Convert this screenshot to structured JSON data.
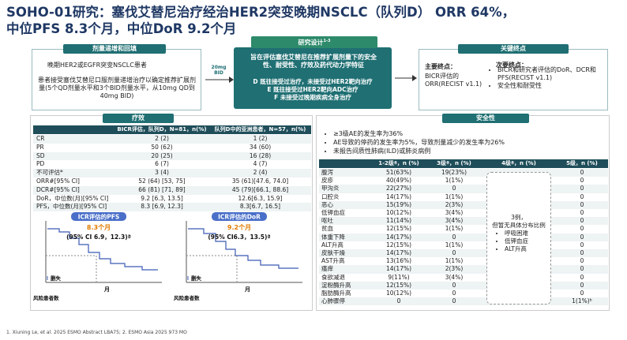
{
  "title": {
    "line1": "SOHO-01研究：塞伐艾替尼治疗经治HER2突变晚期NSCLC（队列D） ORR 64%，",
    "line2": "中位PFS 8.3个月，中位DoR 9.2个月"
  },
  "design": {
    "dose_escalation": {
      "header": "剂量递增和回填",
      "patients": "晚期HER2或EGFR突变NSCLC患者",
      "description": "患者接受塞伐艾替尼口服剂量递增治疗以确定推荐扩展剂量(5个QD剂量水平和3个BID剂量水平，从10mg QD到40mg BID)"
    },
    "arrow_label": "20mg BID",
    "study_design": {
      "header": "研究设计",
      "superscript": "1-3",
      "aim": "旨在评估塞伐艾替尼在推荐扩展剂量下的安全性、耐受性、疗效及药代动力学特征",
      "cohorts": [
        "D 既往接受过治疗，未接受过HER2靶向治疗",
        "E 既往接受过HER2靶向ADC治疗",
        "F 未接受过晚期疾病全身治疗"
      ]
    },
    "endpoints": {
      "header": "关键终点",
      "primary_label": "主要终点：",
      "primary": "BICR评估的ORR(RECIST v1.1)",
      "secondary_label": "次要终点：",
      "secondary": [
        "BICR和研究者评估的DoR、DCR和PFS(RECIST v1.1)",
        "安全性和耐受性"
      ]
    }
  },
  "efficacy": {
    "header": "疗效",
    "table": {
      "columns": [
        "BICR评估，队列D，N=81，n(%)",
        "队列D中的亚洲患者，N=57，n(%)"
      ],
      "rows": [
        [
          "CR",
          "2 (2)",
          "1 (2)"
        ],
        [
          "PR",
          "50 (62)",
          "34 (60)"
        ],
        [
          "SD",
          "20 (25)",
          "16 (28)"
        ],
        [
          "PD",
          "6 (7)",
          "4 (7)"
        ],
        [
          "不可评估*",
          "3 (4)",
          "2 (4)"
        ],
        [
          "ORR#[95% CI]",
          "52 (64) [53, 75]",
          "35 (61)[47.6, 74.0]"
        ],
        [
          "DCR#[95% CI]",
          "66 (81) [71, 89]",
          "45 (79)[66.1, 88.6]"
        ],
        [
          "DoR，中位数(月)[95% CI]",
          "9.2 [6.3, 13.5]",
          "12.6[6.3, 15.9]"
        ],
        [
          "PFS，中位数(月)[95% CI]",
          "8.3 [6.9, 12.3]",
          "8.3[6.7, 16.5]"
        ]
      ]
    },
    "km": [
      {
        "title": "ICR评估的PFS",
        "median": "8.3个月",
        "ci": "(95% CI 6.9，12.3)ª",
        "censor_label": "删失",
        "risk_label": "风险患者数",
        "x_axis_label": "月"
      },
      {
        "title": "ICR评估的DoR",
        "median": "9.2个月",
        "ci": "(95% CI6.3，13.5)ª",
        "censor_label": "删失",
        "risk_label": "风险患者数",
        "x_axis_label": "月"
      }
    ]
  },
  "safety": {
    "header": "安全性",
    "bullets": [
      "≥3级AE的发生率为36%",
      "AE导致的停药的发生率为5%，导致剂量减少的发生率为26%",
      "未报告间质性肺病(ILD)或肺炎病例"
    ],
    "table": {
      "columns": [
        "1-2级ª，n (%)",
        "3级ª，n (%)",
        "4级ª，n (%)",
        "5级，n (%)"
      ],
      "rows": [
        [
          "腹泻",
          "51(63%)",
          "19(23%)",
          "0"
        ],
        [
          "皮疹",
          "40(49%)",
          "1(1%)",
          "0"
        ],
        [
          "甲沟炎",
          "22(27%)",
          "0",
          "0"
        ],
        [
          "口腔炎",
          "14(17%)",
          "1(1%)",
          "0"
        ],
        [
          "恶心",
          "15(19%)",
          "2(3%)",
          "0"
        ],
        [
          "低钾血症",
          "10(12%)",
          "3(4%)",
          "0"
        ],
        [
          "呕吐",
          "11(14%)",
          "3(4%)",
          "0"
        ],
        [
          "贫血",
          "12(15%)",
          "1(1%)",
          "0"
        ],
        [
          "体重下降",
          "14(17%)",
          "0",
          "0"
        ],
        [
          "ALT升高",
          "12(15%)",
          "1(1%)",
          "0"
        ],
        [
          "皮肤干燥",
          "14(17%)",
          "0",
          "0"
        ],
        [
          "AST升高",
          "13(16%)",
          "1(1%)",
          "0"
        ],
        [
          "瘙痒",
          "14(17%)",
          "2(3%)",
          "0"
        ],
        [
          "食欲减退",
          "9(11%)",
          "3(4%)",
          "0"
        ],
        [
          "淀粉酶升高",
          "12(15%)",
          "0",
          "0"
        ],
        [
          "脂肪酶升高",
          "10(12%)",
          "0",
          "0"
        ],
        [
          "心肺骤停",
          "0",
          "0",
          "1(1%)ᵇ"
        ]
      ]
    },
    "grade4_note": {
      "text": [
        "3例，",
        "但暂无具体分布比例"
      ],
      "items": [
        "呼吸困难",
        "低钾血症",
        "ALT升高"
      ]
    }
  },
  "footnotes": [
    "1.  Xiuning Le, et al. 2025 ESMO Abstract LBA75; 2. ESMO Asia 2025 973 MO"
  ]
}
